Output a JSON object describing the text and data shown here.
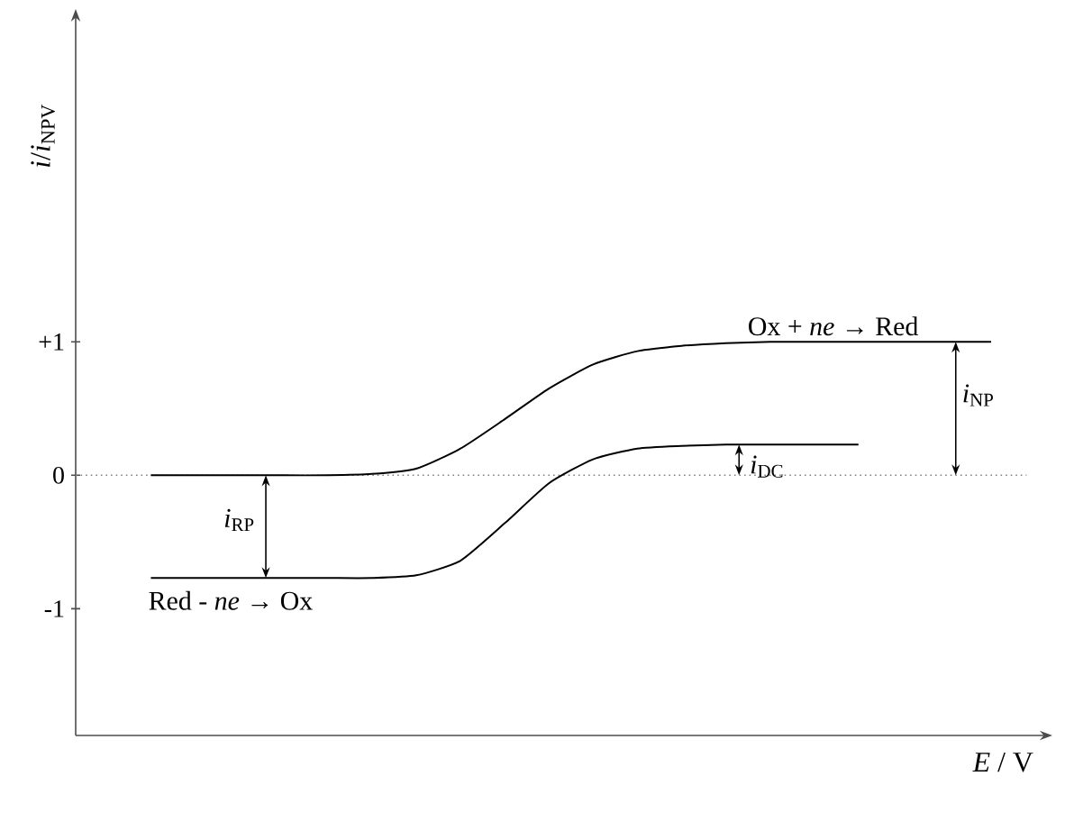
{
  "chart_data": {
    "type": "line",
    "xlabel": "*E* / V",
    "ylabel": "*i*/*i*$_{NPV}$",
    "categories": [
      null,
      null,
      null,
      null,
      null,
      null,
      null,
      null,
      null,
      null,
      null,
      null,
      null,
      null,
      null,
      null,
      null,
      null,
      null,
      null
    ],
    "series": [
      {
        "color": "#000000",
        "values": [
          0,
          0,
          0,
          0,
          0,
          0.01,
          0.05,
          0.2,
          0.42,
          0.65,
          0.83,
          0.93,
          0.97,
          0.99,
          1,
          1,
          1,
          1,
          1,
          1
        ]
      },
      {
        "color": "#000000",
        "values": [
          -0.77,
          -0.77,
          -0.77,
          -0.77,
          -0.77,
          -0.77,
          -0.75,
          -0.64,
          -0.36,
          -0.06,
          0.12,
          0.2,
          0.22,
          0.23,
          0.23,
          0.23,
          0.23,
          null,
          null,
          null
        ]
      }
    ],
    "ylim": [
      -1.95,
      3.4
    ],
    "yticks": [
      {
        "value": 1,
        "label": "+1"
      },
      0,
      -1
    ],
    "tick_labels": "y",
    "ref_lines": [
      {
        "axis": "y",
        "value": 0,
        "color": "#808080",
        "line_style": "dotted"
      }
    ],
    "annotations": [
      "Ox + *ne* → Red",
      "Red - *ne* → Ox",
      "*i*$_{NP}$",
      "*i*$_{DC}$",
      "*i*$_{RP}$"
    ],
    "grid": false,
    "marker": "none",
    "line_style": "solid"
  }
}
